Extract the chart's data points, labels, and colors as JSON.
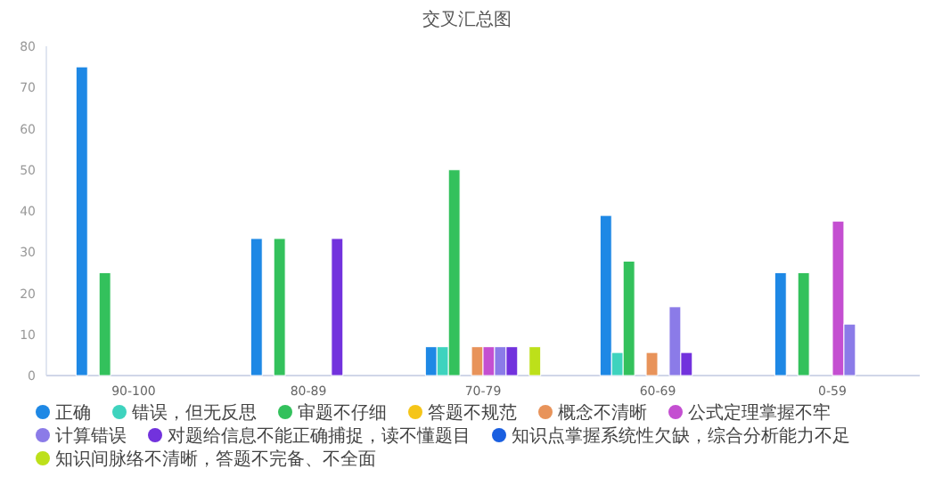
{
  "chart_data": {
    "type": "bar",
    "title": "交叉汇总图",
    "categories": [
      "90-100",
      "80-89",
      "70-79",
      "60-69",
      "0-59"
    ],
    "series": [
      {
        "name": "正确",
        "color": "#1e88e5",
        "values": [
          75,
          33.3,
          7,
          38.9,
          25
        ]
      },
      {
        "name": "错误，但无反思",
        "color": "#3ed3be",
        "values": [
          null,
          null,
          7,
          5.6,
          null
        ]
      },
      {
        "name": "审题不仔细",
        "color": "#33c15c",
        "values": [
          25,
          33.3,
          50,
          27.8,
          25
        ]
      },
      {
        "name": "答题不规范",
        "color": "#f5c518",
        "values": [
          null,
          null,
          null,
          null,
          null
        ]
      },
      {
        "name": "概念不清晰",
        "color": "#e8935a",
        "values": [
          null,
          null,
          7,
          5.6,
          null
        ]
      },
      {
        "name": "公式定理掌握不牢",
        "color": "#c44fd1",
        "values": [
          null,
          null,
          7,
          null,
          37.5
        ]
      },
      {
        "name": "计算错误",
        "color": "#8b7be8",
        "values": [
          null,
          null,
          7,
          16.7,
          12.5
        ]
      },
      {
        "name": "对题给信息不能正确捕捉，读不懂题目",
        "color": "#7232dd",
        "values": [
          null,
          33.3,
          7,
          5.6,
          null
        ]
      },
      {
        "name": "知识点掌握系统性欠缺，综合分析能力不足",
        "color": "#1a5fe0",
        "values": [
          null,
          null,
          null,
          null,
          null
        ]
      },
      {
        "name": "知识间脉络不清晰，答题不完备、不全面",
        "color": "#bde01a",
        "values": [
          null,
          null,
          7,
          null,
          null
        ]
      }
    ],
    "ylim": [
      0,
      80
    ],
    "yticks": [
      0,
      10,
      20,
      30,
      40,
      50,
      60,
      70,
      80
    ],
    "legend": "bottom"
  }
}
